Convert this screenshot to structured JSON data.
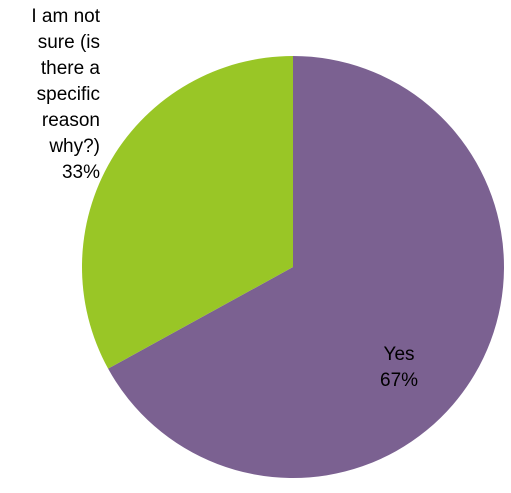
{
  "chart_data": {
    "type": "pie",
    "title": "",
    "slices": [
      {
        "label": "Yes",
        "value": 67,
        "value_label": "67%",
        "color": "#7b6191"
      },
      {
        "label_lines": [
          "I am not",
          "sure (is",
          "there a",
          "specific",
          "reason",
          "why?)"
        ],
        "label": "I am not sure (is there a specific reason why?)",
        "value": 33,
        "value_label": "33%",
        "color": "#99c626"
      }
    ],
    "start_angle": "12 o'clock",
    "direction": "clockwise",
    "legend": "none"
  }
}
